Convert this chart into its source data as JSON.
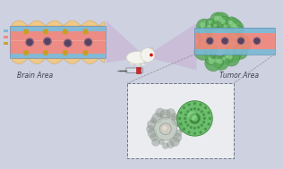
{
  "bg_color": "#cdd1e0",
  "brain_area_label": "Brain Area",
  "tumor_area_label": "Tumor Area",
  "vessel_salmon": "#f0857a",
  "vessel_pink_light": "#f5a090",
  "vessel_blue": "#7ab8d4",
  "neuron_color": "#f5c87a",
  "neuron_outline": "#d4a050",
  "dot_dark": "#4a3a5a",
  "dot_gold": "#c8a020",
  "tumor_green": "#5aaa5a",
  "tumor_green2": "#7acc7a",
  "tumor_green_outline": "#3a7a3a",
  "tumor_green_inner": "#a0e0a0",
  "cell_gray": "#909a90",
  "cell_gray_light": "#b8c4b8",
  "cell_nucleus": "#d0ccc0",
  "cone_color": "#c090c8",
  "cone_alpha": 0.3,
  "inset_bg": "#eaecf0",
  "legend_blue": "#7ab8d4",
  "legend_salmon": "#f0857a",
  "legend_gold": "#c8a020"
}
